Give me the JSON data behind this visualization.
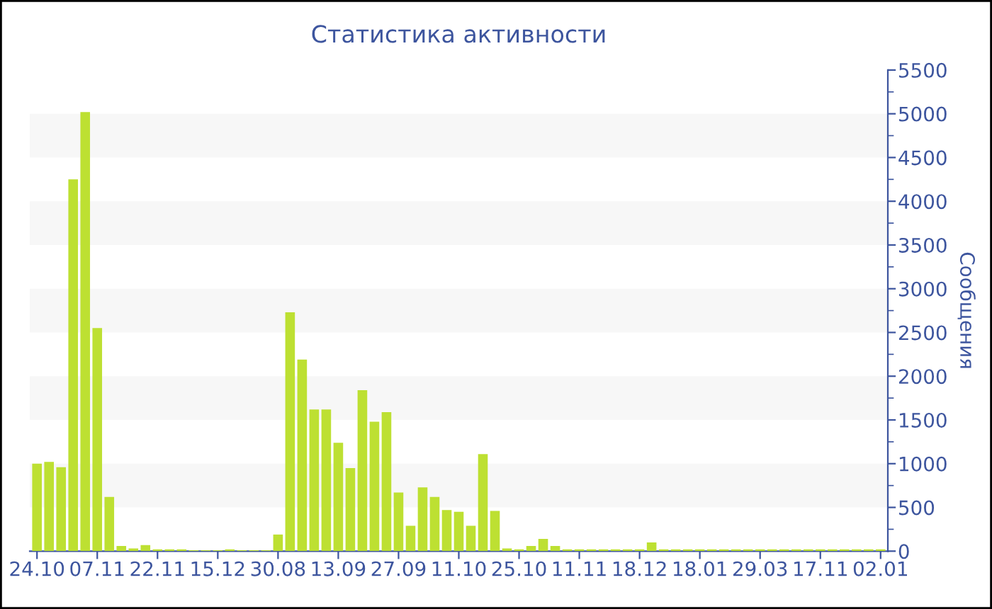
{
  "chart_data": {
    "type": "bar",
    "title": "Статистика активности",
    "ylabel": "Сообщения",
    "categories": [
      "24.10",
      null,
      null,
      null,
      null,
      "07.11",
      null,
      null,
      null,
      null,
      "22.11",
      null,
      null,
      null,
      null,
      "15.12",
      null,
      null,
      null,
      null,
      "30.08",
      null,
      null,
      null,
      null,
      "13.09",
      null,
      null,
      null,
      null,
      "27.09",
      null,
      null,
      null,
      null,
      "11.10",
      null,
      null,
      null,
      null,
      "25.10",
      null,
      null,
      null,
      null,
      "11.11",
      null,
      null,
      null,
      null,
      "18.12",
      null,
      null,
      null,
      null,
      "18.01",
      null,
      null,
      null,
      null,
      "29.03",
      null,
      null,
      null,
      null,
      "17.11",
      null,
      null,
      null,
      null,
      "02.01"
    ],
    "values": [
      1000,
      1020,
      960,
      4250,
      5020,
      2550,
      620,
      60,
      30,
      70,
      20,
      20,
      20,
      10,
      10,
      10,
      20,
      10,
      10,
      10,
      190,
      2730,
      2190,
      1620,
      1620,
      1240,
      950,
      1840,
      1480,
      1590,
      670,
      290,
      730,
      620,
      470,
      450,
      290,
      1110,
      460,
      30,
      20,
      60,
      140,
      60,
      20,
      20,
      20,
      20,
      20,
      20,
      20,
      100,
      20,
      20,
      20,
      20,
      20,
      20,
      20,
      20,
      20,
      20,
      20,
      20,
      20,
      20,
      20,
      20,
      20,
      20,
      20
    ],
    "color": "#bde032",
    "ylim": [
      0,
      5500
    ],
    "yticks": [
      0,
      500,
      1000,
      1500,
      2000,
      2500,
      3000,
      3500,
      4000,
      4500,
      5000,
      5500
    ],
    "bands": [
      {
        "axis": "y",
        "from": 500,
        "to": 1000,
        "color": "#f7f7f7"
      },
      {
        "axis": "y",
        "from": 1500,
        "to": 2000,
        "color": "#f7f7f7"
      },
      {
        "axis": "y",
        "from": 2500,
        "to": 3000,
        "color": "#f7f7f7"
      },
      {
        "axis": "y",
        "from": 3500,
        "to": 4000,
        "color": "#f7f7f7"
      },
      {
        "axis": "y",
        "from": 4500,
        "to": 5000,
        "color": "#f7f7f7"
      }
    ]
  }
}
